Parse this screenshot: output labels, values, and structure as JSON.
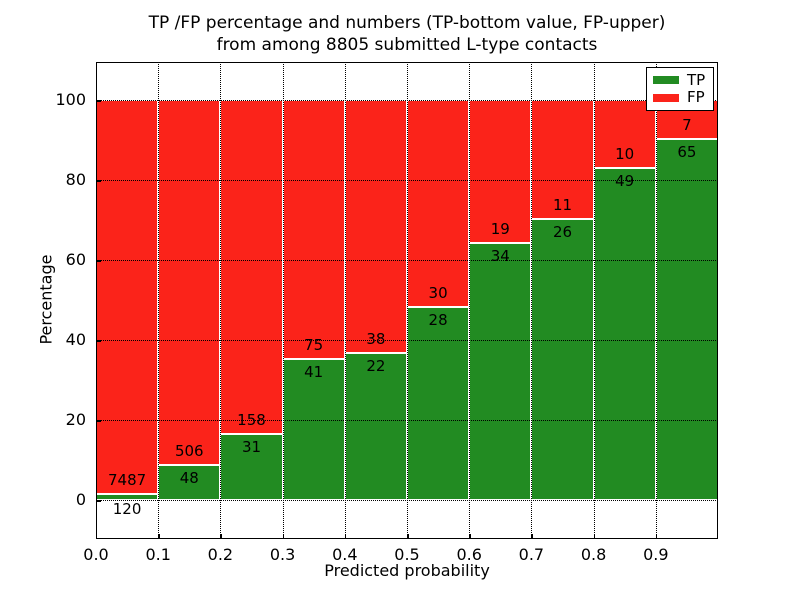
{
  "chart_data": {
    "type": "bar",
    "stacked": true,
    "title_lines": [
      "TP /FP percentage and numbers (TP-bottom value, FP-upper)",
      "from among 8805 submitted L-type contacts"
    ],
    "xlabel": "Predicted probability",
    "ylabel": "Percentage",
    "xlim": [
      0.0,
      1.0
    ],
    "ylim": [
      -10,
      110
    ],
    "x_tick_labels": [
      "0.0",
      "0.1",
      "0.2",
      "0.3",
      "0.4",
      "0.5",
      "0.6",
      "0.7",
      "0.8",
      "0.9"
    ],
    "y_tick_values": [
      0,
      20,
      40,
      60,
      80,
      100
    ],
    "grid": true,
    "grid_style": "dotted",
    "total_contacts": 8805,
    "legend": {
      "position": "upper right",
      "entries": [
        {
          "label": "TP",
          "color": "#228b22"
        },
        {
          "label": "FP",
          "color": "#fb231a"
        }
      ]
    },
    "colors": {
      "tp": "#228b22",
      "fp": "#fb231a",
      "bar_edge": "#ffffff"
    },
    "bars": [
      {
        "x_start": 0.0,
        "x_end": 0.1,
        "tp_count": 120,
        "fp_count": 7487,
        "tp_pct": 1.58,
        "fp_pct": 98.42,
        "tp_label_below_axis": true
      },
      {
        "x_start": 0.1,
        "x_end": 0.2,
        "tp_count": 48,
        "fp_count": 506,
        "tp_pct": 8.66,
        "fp_pct": 91.34,
        "tp_label_below_axis": false
      },
      {
        "x_start": 0.2,
        "x_end": 0.3,
        "tp_count": 31,
        "fp_count": 158,
        "tp_pct": 16.4,
        "fp_pct": 83.6,
        "tp_label_below_axis": false
      },
      {
        "x_start": 0.3,
        "x_end": 0.4,
        "tp_count": 41,
        "fp_count": 75,
        "tp_pct": 35.34,
        "fp_pct": 64.66,
        "tp_label_below_axis": false
      },
      {
        "x_start": 0.4,
        "x_end": 0.5,
        "tp_count": 22,
        "fp_count": 38,
        "tp_pct": 36.67,
        "fp_pct": 63.33,
        "tp_label_below_axis": false
      },
      {
        "x_start": 0.5,
        "x_end": 0.6,
        "tp_count": 28,
        "fp_count": 30,
        "tp_pct": 48.28,
        "fp_pct": 51.72,
        "tp_label_below_axis": false
      },
      {
        "x_start": 0.6,
        "x_end": 0.7,
        "tp_count": 34,
        "fp_count": 19,
        "tp_pct": 64.15,
        "fp_pct": 35.85,
        "tp_label_below_axis": false
      },
      {
        "x_start": 0.7,
        "x_end": 0.8,
        "tp_count": 26,
        "fp_count": 11,
        "tp_pct": 70.27,
        "fp_pct": 29.73,
        "tp_label_below_axis": false
      },
      {
        "x_start": 0.8,
        "x_end": 0.9,
        "tp_count": 49,
        "fp_count": 10,
        "tp_pct": 83.05,
        "fp_pct": 16.95,
        "tp_label_below_axis": false
      },
      {
        "x_start": 0.9,
        "x_end": 1.0,
        "tp_count": 65,
        "fp_count": 7,
        "tp_pct": 90.28,
        "fp_pct": 9.72,
        "tp_label_below_axis": false
      }
    ]
  }
}
